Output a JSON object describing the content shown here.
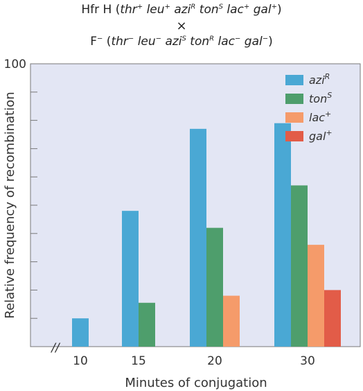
{
  "cross": {
    "hfr": {
      "prefix": "Hfr H",
      "genes": [
        {
          "name": "thr",
          "sup": "+"
        },
        {
          "name": "leu",
          "sup": "+"
        },
        {
          "name": "azi",
          "sup": "R"
        },
        {
          "name": "ton",
          "sup": "S"
        },
        {
          "name": "lac",
          "sup": "+"
        },
        {
          "name": "gal",
          "sup": "+"
        }
      ]
    },
    "symbol": "×",
    "f": {
      "prefix": "F",
      "prefix_sup": "−",
      "genes": [
        {
          "name": "thr",
          "sup": "−"
        },
        {
          "name": "leu",
          "sup": "−"
        },
        {
          "name": "azi",
          "sup": "S"
        },
        {
          "name": "ton",
          "sup": "R"
        },
        {
          "name": "lac",
          "sup": "−"
        },
        {
          "name": "gal",
          "sup": "−"
        }
      ]
    }
  },
  "colors": {
    "plot_bg": "#e3e6f4",
    "azi": "#4aa8d4",
    "ton": "#4e9e6c",
    "lac": "#f59b6a",
    "gal": "#e25c48"
  },
  "chart_data": {
    "type": "bar",
    "categories": [
      "10",
      "15",
      "20",
      "30"
    ],
    "series": [
      {
        "name": "azi",
        "sup": "R",
        "color_key": "azi",
        "values": [
          10,
          48,
          77,
          79
        ]
      },
      {
        "name": "ton",
        "sup": "S",
        "color_key": "ton",
        "values": [
          null,
          15.5,
          42,
          57
        ]
      },
      {
        "name": "lac",
        "sup": "+",
        "color_key": "lac",
        "values": [
          null,
          null,
          18,
          36
        ]
      },
      {
        "name": "gal",
        "sup": "+",
        "color_key": "gal",
        "values": [
          null,
          null,
          null,
          20
        ]
      }
    ],
    "ylim": [
      0,
      100
    ],
    "ytick_label": "100",
    "xlabel": "Minutes of conjugation",
    "ylabel": "Relative frequency of recombination",
    "legend": "top-right",
    "axis_break": "//"
  }
}
